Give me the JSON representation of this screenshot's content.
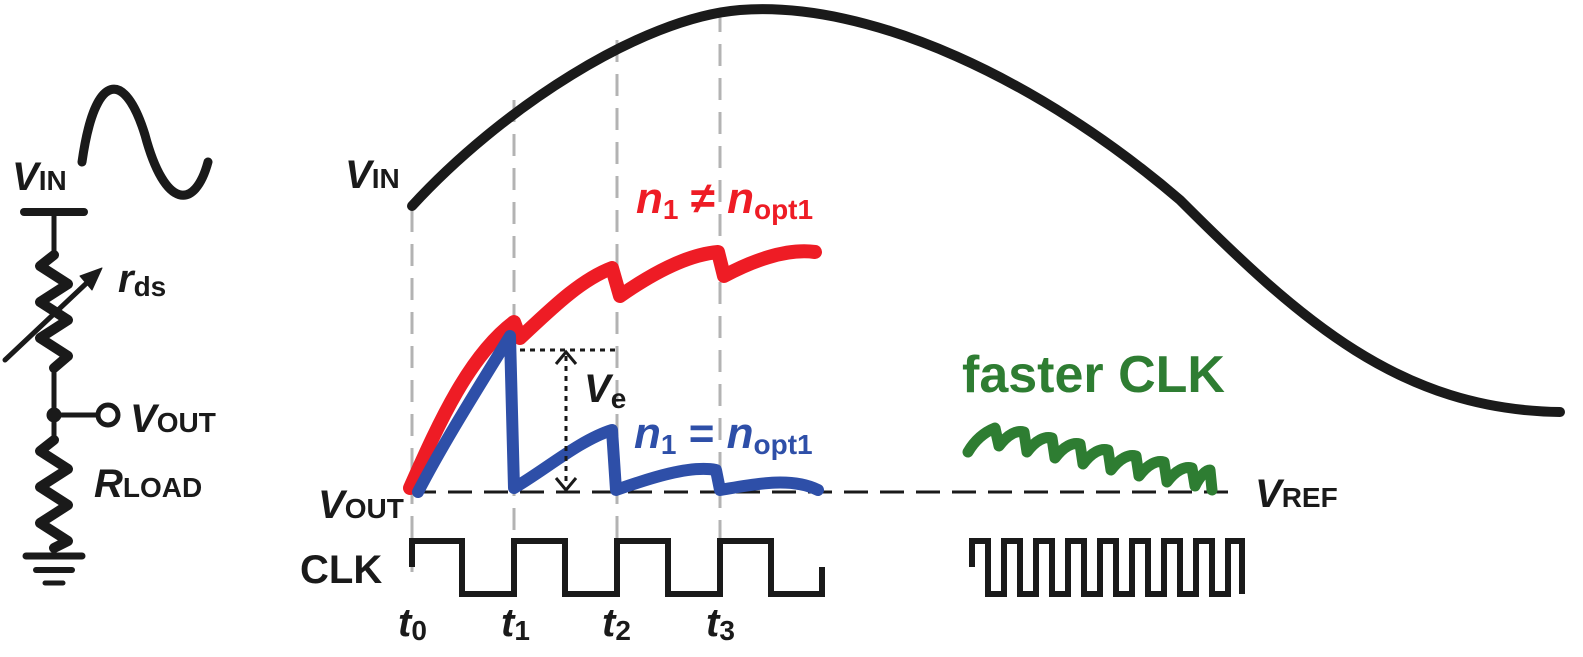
{
  "colors": {
    "ink": "#1a1a1a",
    "red": "#ee1c25",
    "blue": "#2e4fa8",
    "green": "#2e7d32",
    "guide": "#b3b3b3"
  },
  "circuit": {
    "vin_main": "V",
    "vin_sub": "IN",
    "rds_main": "r",
    "rds_sub": "ds",
    "vout_main": "V",
    "vout_sub": "OUT",
    "rload_main": "R",
    "rload_sub": "LOAD"
  },
  "waveform": {
    "vin_main": "V",
    "vin_sub": "IN",
    "vout_main": "V",
    "vout_sub": "OUT",
    "vref_main": "V",
    "vref_sub": "REF",
    "clk_label": "CLK",
    "ve_main": "V",
    "ve_sub": "e",
    "red_n": "n",
    "red_n_sub": "1",
    "red_op": " ≠ ",
    "red_nopt": "n",
    "red_nopt_sub": "opt1",
    "blue_n": "n",
    "blue_n_sub": "1",
    "blue_op": " = ",
    "blue_nopt": "n",
    "blue_nopt_sub": "opt1",
    "faster_clk": "faster CLK"
  },
  "time_labels": [
    {
      "main": "t",
      "sub": "0"
    },
    {
      "main": "t",
      "sub": "1"
    },
    {
      "main": "t",
      "sub": "2"
    },
    {
      "main": "t",
      "sub": "3"
    }
  ]
}
